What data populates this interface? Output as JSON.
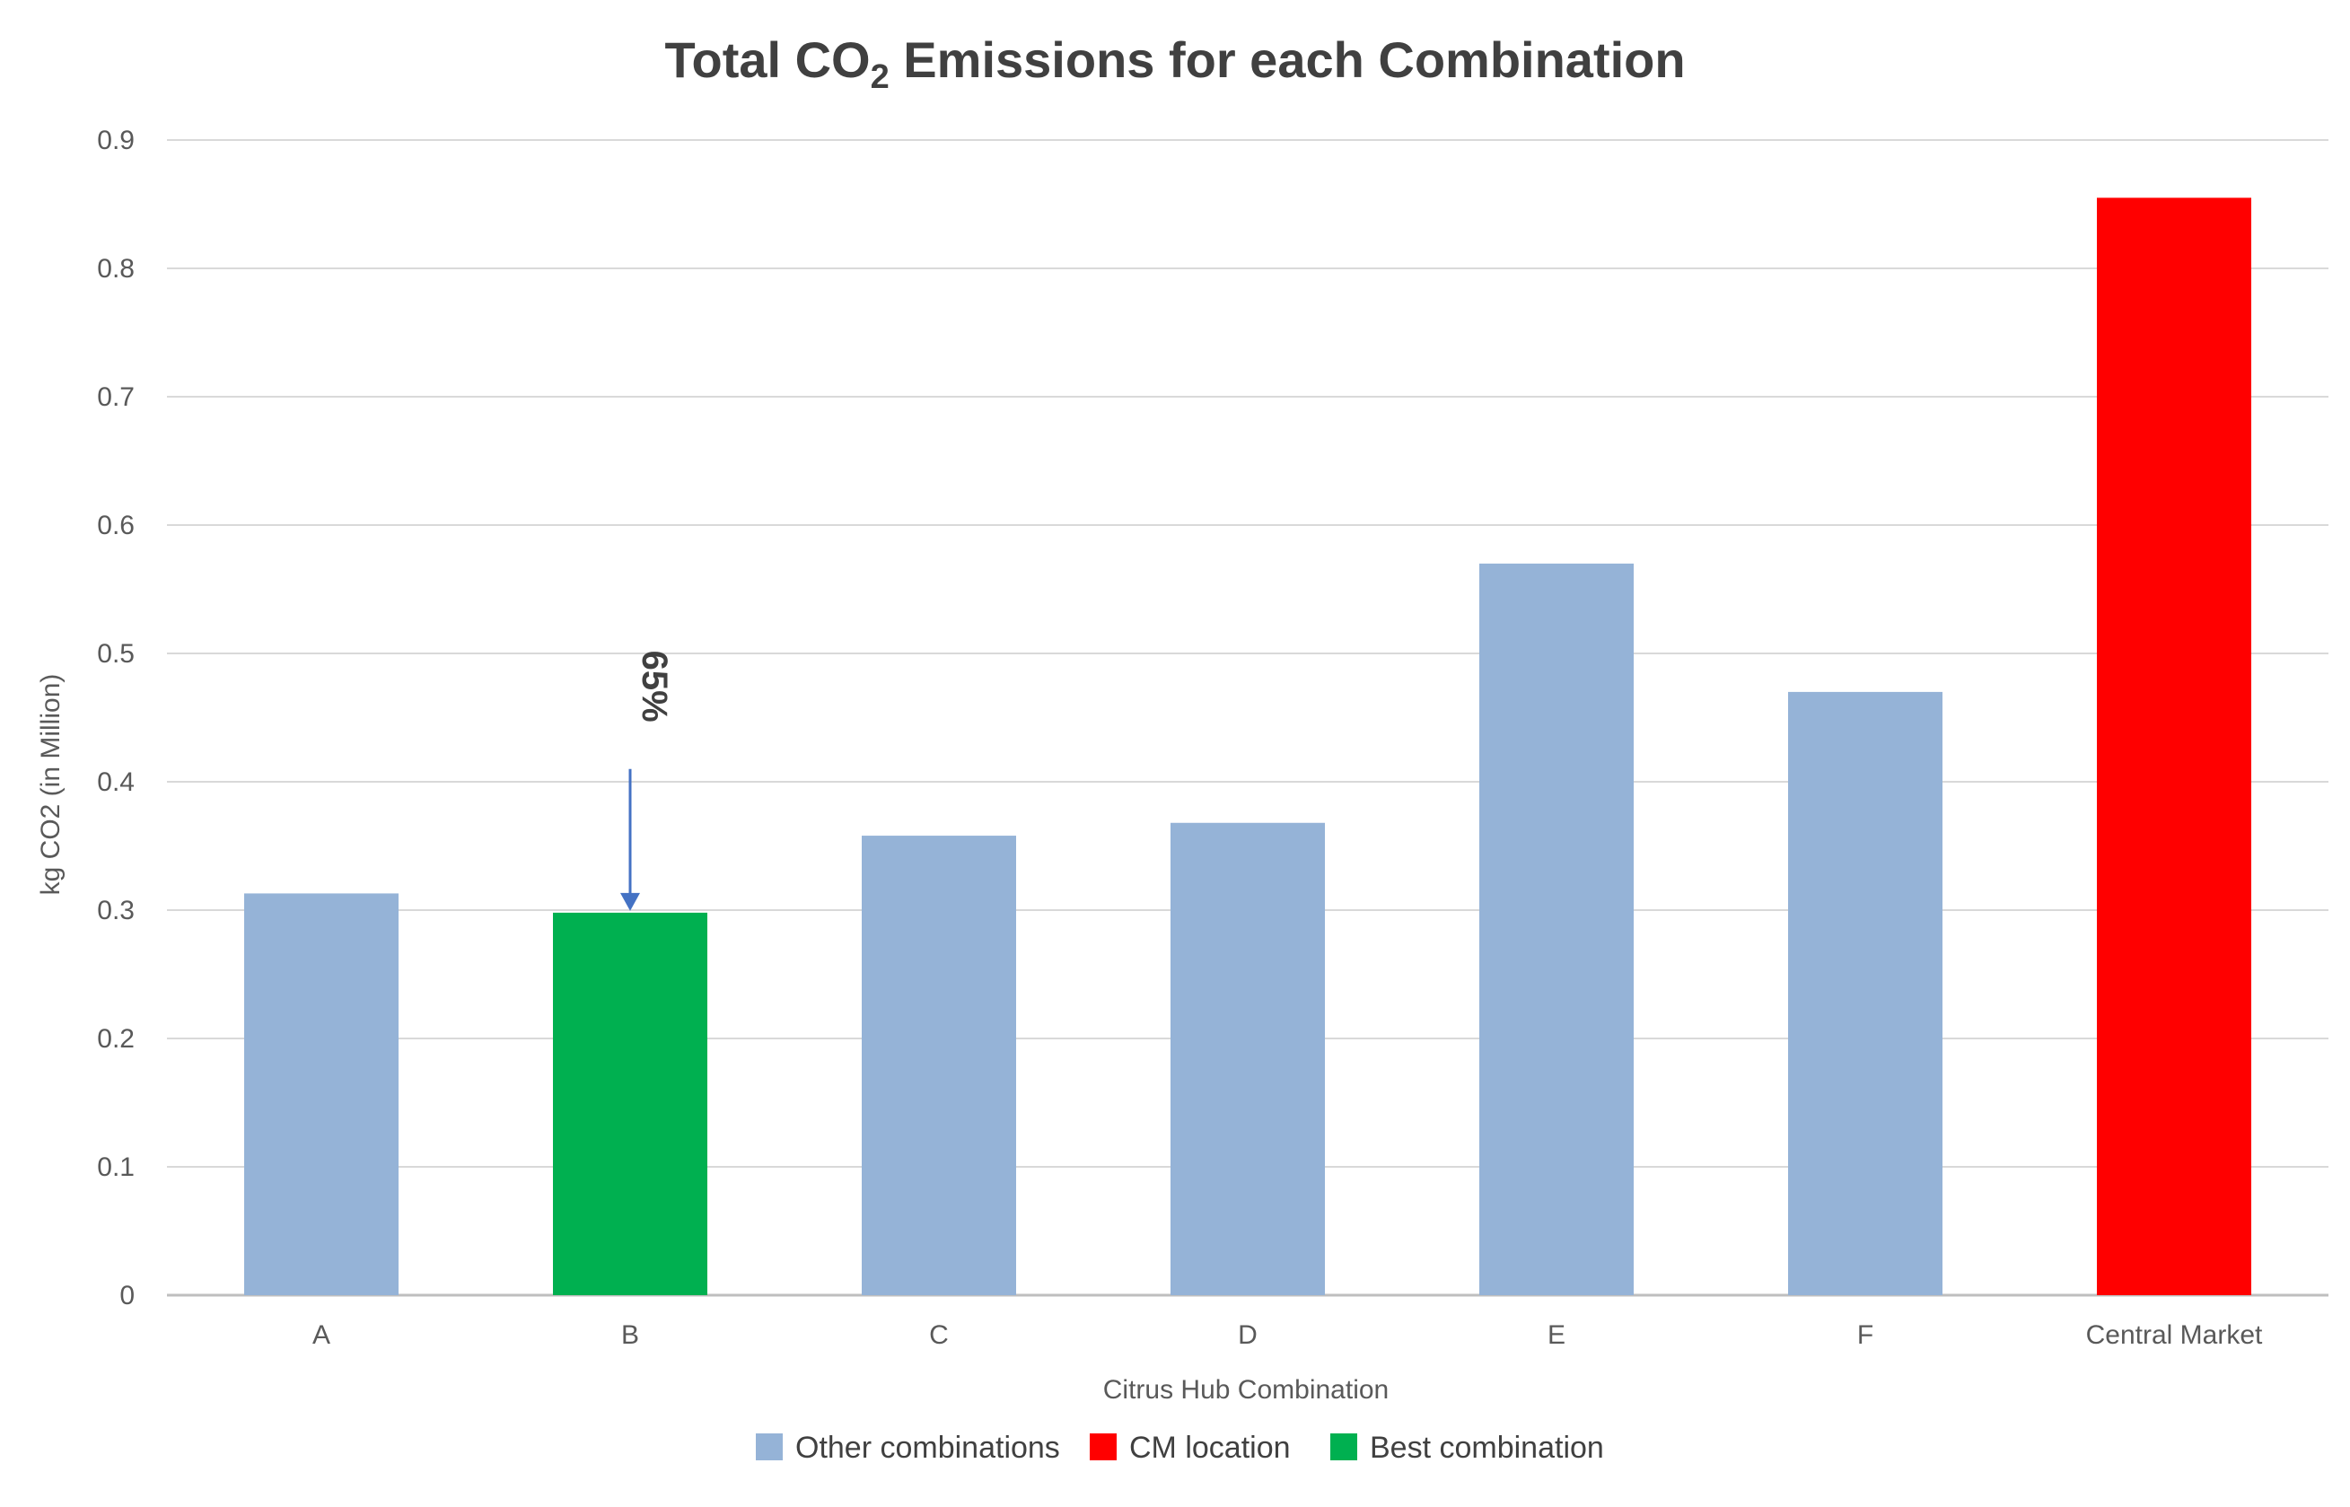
{
  "chart_data": {
    "type": "bar",
    "title_prefix": "Total CO",
    "title_subscript": "2",
    "title_suffix": " Emissions for each Combination",
    "xlabel": "Citrus Hub Combination",
    "ylabel": "kg CO2 (in Million)",
    "categories": [
      "A",
      "B",
      "C",
      "D",
      "E",
      "F",
      "Central Market"
    ],
    "values": [
      0.313,
      0.298,
      0.358,
      0.368,
      0.57,
      0.47,
      0.855
    ],
    "bar_groups": [
      "other",
      "best",
      "other",
      "other",
      "other",
      "other",
      "cm"
    ],
    "ylim": [
      0,
      0.9
    ],
    "yticks": [
      "0",
      "0.1",
      "0.2",
      "0.3",
      "0.4",
      "0.5",
      "0.6",
      "0.7",
      "0.8",
      "0.9"
    ],
    "grid": true,
    "legend_position": "bottom",
    "legend": [
      {
        "key": "other",
        "label": "Other combinations",
        "color": "#95b3d7"
      },
      {
        "key": "cm",
        "label": "CM location",
        "color": "#ff0000"
      },
      {
        "key": "best",
        "label": "Best combination",
        "color": "#00b050"
      }
    ],
    "annotation": {
      "text": "65%",
      "category": "B",
      "arrow_from_value": 0.41,
      "arrow_to_value": 0.298
    }
  }
}
